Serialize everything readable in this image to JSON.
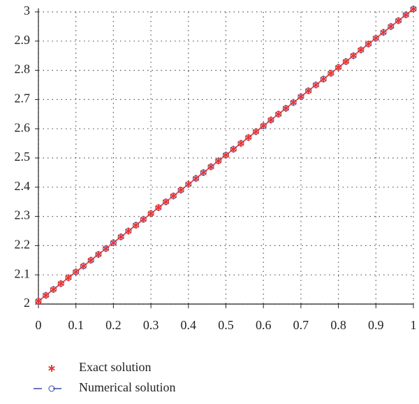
{
  "chart_data": {
    "type": "line",
    "x": [
      0,
      0.02,
      0.04,
      0.06,
      0.08,
      0.1,
      0.12,
      0.14,
      0.16,
      0.18,
      0.2,
      0.22,
      0.24,
      0.26,
      0.28,
      0.3,
      0.32,
      0.34,
      0.36,
      0.38,
      0.4,
      0.42,
      0.44,
      0.46,
      0.48,
      0.5,
      0.52,
      0.54,
      0.56,
      0.58,
      0.6,
      0.62,
      0.64,
      0.66,
      0.68,
      0.7,
      0.72,
      0.74,
      0.76,
      0.78,
      0.8,
      0.82,
      0.84,
      0.86,
      0.88,
      0.9,
      0.92,
      0.94,
      0.96,
      0.98,
      1
    ],
    "series": [
      {
        "name": "Exact solution",
        "color": "#e8322b",
        "marker": "star",
        "values": [
          2.01,
          2.03,
          2.05,
          2.07,
          2.09,
          2.11,
          2.13,
          2.15,
          2.17,
          2.19,
          2.21,
          2.23,
          2.25,
          2.27,
          2.29,
          2.31,
          2.33,
          2.35,
          2.37,
          2.39,
          2.41,
          2.43,
          2.45,
          2.47,
          2.49,
          2.51,
          2.53,
          2.55,
          2.57,
          2.59,
          2.61,
          2.63,
          2.65,
          2.67,
          2.69,
          2.71,
          2.73,
          2.75,
          2.77,
          2.79,
          2.81,
          2.83,
          2.85,
          2.87,
          2.89,
          2.91,
          2.93,
          2.95,
          2.97,
          2.99,
          3.01
        ]
      },
      {
        "name": "Numerical solution",
        "color": "#3b4aa8",
        "marker": "circle",
        "dashed": true,
        "values": [
          2.01,
          2.03,
          2.05,
          2.07,
          2.09,
          2.11,
          2.13,
          2.15,
          2.17,
          2.19,
          2.21,
          2.23,
          2.25,
          2.27,
          2.29,
          2.31,
          2.33,
          2.35,
          2.37,
          2.39,
          2.41,
          2.43,
          2.45,
          2.47,
          2.49,
          2.51,
          2.53,
          2.55,
          2.57,
          2.59,
          2.61,
          2.63,
          2.65,
          2.67,
          2.69,
          2.71,
          2.73,
          2.75,
          2.77,
          2.79,
          2.81,
          2.83,
          2.85,
          2.87,
          2.89,
          2.91,
          2.93,
          2.95,
          2.97,
          2.99,
          3.01
        ]
      }
    ],
    "xlim": [
      0,
      1
    ],
    "xticks": [
      0,
      0.1,
      0.2,
      0.3,
      0.4,
      0.5,
      0.6,
      0.7,
      0.8,
      0.9,
      1
    ],
    "ylim": [
      2,
      3
    ],
    "yticks": [
      2,
      2.1,
      2.2,
      2.3,
      2.4,
      2.5,
      2.6,
      2.7,
      2.8,
      2.9,
      3
    ],
    "grid": true
  }
}
